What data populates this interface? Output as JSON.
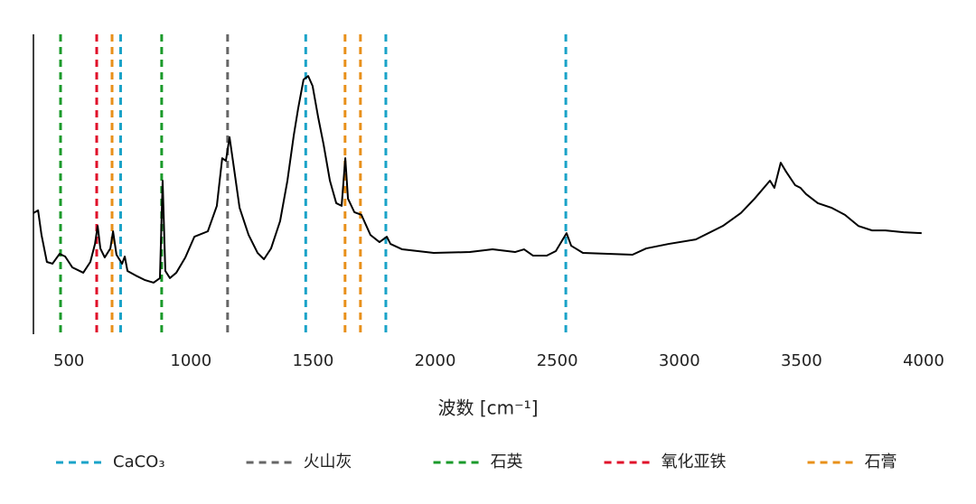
{
  "chart_data": {
    "type": "line",
    "xlabel": "波数 [cm⁻¹]",
    "xlim": [
      355,
      4000
    ],
    "xticks": [
      500,
      1000,
      1500,
      2000,
      2500,
      3000,
      3500,
      4000
    ],
    "ylim": [
      0,
      100
    ],
    "color": "#000000",
    "x": [
      355,
      374,
      388,
      410,
      433,
      462,
      485,
      514,
      559,
      588,
      607,
      618,
      629,
      647,
      670,
      681,
      695,
      718,
      729,
      740,
      773,
      810,
      847,
      873,
      884,
      895,
      914,
      940,
      977,
      1014,
      1069,
      1106,
      1128,
      1143,
      1158,
      1173,
      1199,
      1236,
      1273,
      1299,
      1328,
      1365,
      1395,
      1421,
      1439,
      1461,
      1480,
      1498,
      1521,
      1543,
      1569,
      1595,
      1617,
      1632,
      1643,
      1669,
      1698,
      1735,
      1772,
      1802,
      1817,
      1865,
      1994,
      2142,
      2235,
      2327,
      2364,
      2401,
      2457,
      2494,
      2538,
      2557,
      2605,
      2808,
      2864,
      2956,
      3067,
      3178,
      3252,
      3308,
      3371,
      3389,
      3415,
      3437,
      3474,
      3496,
      3519,
      3567,
      3622,
      3678,
      3733,
      3789,
      3844,
      3918,
      3992
    ],
    "values": [
      40.4,
      41.3,
      33.1,
      24.1,
      23.5,
      26.8,
      25.9,
      22.3,
      20.5,
      24.1,
      30.1,
      36.1,
      28.6,
      25.6,
      28.6,
      34.3,
      26.5,
      23.5,
      25.9,
      21.1,
      19.6,
      18.1,
      17.2,
      18.7,
      51.2,
      21.1,
      18.7,
      20.5,
      25.6,
      32.5,
      34.3,
      42.8,
      58.7,
      57.8,
      65.7,
      57.2,
      42.2,
      33.1,
      27.1,
      25.0,
      28.6,
      37.7,
      51.2,
      66.3,
      75.3,
      84.9,
      86.1,
      82.8,
      72.3,
      63.3,
      51.2,
      43.7,
      42.8,
      58.7,
      45.2,
      40.7,
      39.8,
      33.1,
      30.7,
      32.5,
      30.1,
      28.3,
      27.1,
      27.4,
      28.3,
      27.4,
      28.3,
      26.2,
      26.2,
      27.7,
      33.7,
      29.5,
      27.1,
      26.5,
      28.6,
      30.1,
      31.6,
      36.1,
      40.4,
      45.2,
      51.2,
      48.8,
      57.2,
      54.2,
      49.7,
      48.8,
      46.7,
      43.7,
      42.2,
      39.8,
      36.1,
      34.6,
      34.6,
      34.0,
      33.7
    ],
    "reference_lines": [
      {
        "name": "CaCO₃",
        "color": "#1aa3c8",
        "x": [
          712,
          1470,
          1798,
          2535
        ]
      },
      {
        "name": "火山灰",
        "color": "#666666",
        "x": [
          1150
        ]
      },
      {
        "name": "石英",
        "color": "#1a9a2a",
        "x": [
          466,
          880
        ]
      },
      {
        "name": "氧化亚铁",
        "color": "#e0102a",
        "x": [
          614
        ]
      },
      {
        "name": "石膏",
        "color": "#e8901a",
        "x": [
          677,
          1631,
          1694
        ]
      }
    ]
  }
}
